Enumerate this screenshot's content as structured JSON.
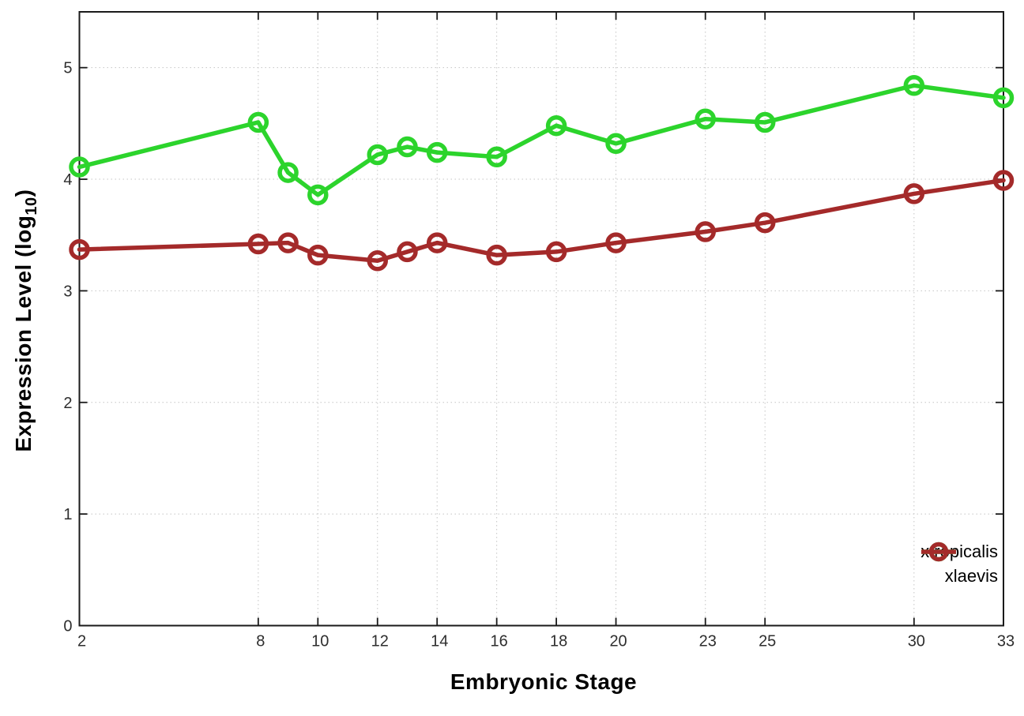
{
  "chart_data": {
    "type": "line",
    "title": "",
    "xlabel": "Embryonic Stage",
    "ylabel": "Expression Level (log10)",
    "ylabel_parts": {
      "base": "Expression Level (log",
      "sub": "10",
      "close": ")"
    },
    "x": [
      2,
      8,
      9,
      10,
      12,
      13,
      14,
      16,
      18,
      20,
      23,
      25,
      30,
      33
    ],
    "x_ticks": [
      2,
      8,
      10,
      12,
      14,
      16,
      18,
      20,
      23,
      25,
      30,
      33
    ],
    "y_ticks": [
      0,
      1,
      2,
      3,
      4,
      5
    ],
    "xlim": [
      2,
      33
    ],
    "ylim": [
      0,
      5.5
    ],
    "grid": true,
    "legend_position": "bottom-right",
    "marker": "open-circle",
    "series": [
      {
        "name": "xtropicalis",
        "color": "#2cd42c",
        "values": [
          4.11,
          4.51,
          4.06,
          3.86,
          4.22,
          4.29,
          4.24,
          4.2,
          4.48,
          4.32,
          4.54,
          4.51,
          4.84,
          4.73
        ]
      },
      {
        "name": "xlaevis",
        "color": "#a42a2a",
        "values": [
          3.37,
          3.42,
          3.43,
          3.32,
          3.27,
          3.35,
          3.43,
          3.32,
          3.35,
          3.43,
          3.53,
          3.61,
          3.87,
          3.99
        ]
      }
    ]
  },
  "colors": {
    "background": "#ffffff",
    "border": "#1a1a1a",
    "grid": "#c4c4c4",
    "tick_label": "#2e2e2e"
  }
}
